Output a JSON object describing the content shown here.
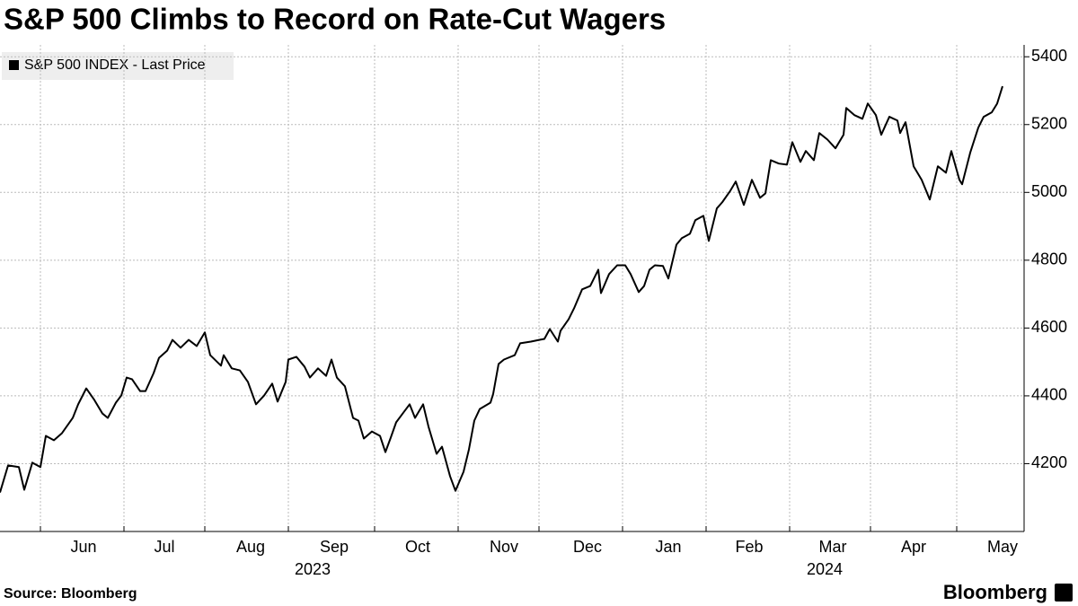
{
  "chart_data": {
    "type": "line",
    "title": "S&P 500 Climbs to Record on Rate-Cut Wagers",
    "source": "Source: Bloomberg",
    "brand": "Bloomberg",
    "legend": "top-left",
    "grid": true,
    "series": [
      {
        "name": "S&P 500 INDEX - Last Price",
        "color": "#000000",
        "x": [
          0,
          3,
          7,
          9,
          12,
          15,
          17,
          20,
          23,
          27,
          29,
          32,
          35,
          38,
          40,
          43,
          45,
          47,
          49,
          52,
          54,
          57,
          59,
          62,
          64,
          67,
          70,
          73,
          76,
          78,
          82,
          83,
          86,
          89,
          92,
          95,
          98,
          101,
          103,
          106,
          107,
          110,
          113,
          115,
          118,
          121,
          123,
          125,
          128,
          131,
          133,
          135,
          138,
          141,
          143,
          145,
          147,
          150,
          152,
          154,
          157,
          159,
          162,
          164,
          167,
          169,
          172,
          174,
          176,
          178,
          182,
          183,
          185,
          187,
          191,
          193,
          197,
          200,
          202,
          204,
          207,
          208,
          211,
          213,
          216,
          219,
          222,
          223,
          226,
          229,
          232,
          234,
          237,
          239,
          241,
          243,
          246,
          248,
          251,
          253,
          256,
          258,
          261,
          263,
          266,
          268,
          271,
          273,
          276,
          279,
          282,
          284,
          286,
          289,
          292,
          294,
          297,
          299,
          302,
          304,
          307,
          310,
          313,
          314,
          317,
          320,
          322,
          325,
          327,
          330,
          333,
          334,
          336,
          339,
          342,
          345,
          348,
          351,
          353,
          356,
          357,
          360,
          363,
          365,
          368,
          370,
          372
        ],
        "values": [
          4115,
          4195,
          4190,
          4123,
          4203,
          4190,
          4282,
          4269,
          4290,
          4335,
          4375,
          4422,
          4388,
          4348,
          4335,
          4380,
          4401,
          4454,
          4449,
          4414,
          4414,
          4467,
          4512,
          4533,
          4565,
          4542,
          4565,
          4547,
          4587,
          4520,
          4489,
          4520,
          4481,
          4475,
          4441,
          4375,
          4401,
          4436,
          4383,
          4441,
          4507,
          4515,
          4486,
          4454,
          4481,
          4459,
          4507,
          4454,
          4428,
          4335,
          4327,
          4274,
          4295,
          4282,
          4234,
          4277,
          4322,
          4354,
          4375,
          4335,
          4375,
          4309,
          4229,
          4250,
          4163,
          4120,
          4176,
          4242,
          4327,
          4361,
          4380,
          4406,
          4494,
          4507,
          4520,
          4555,
          4560,
          4565,
          4568,
          4597,
          4560,
          4592,
          4626,
          4658,
          4714,
          4724,
          4772,
          4703,
          4759,
          4785,
          4785,
          4759,
          4706,
          4724,
          4772,
          4785,
          4783,
          4746,
          4846,
          4865,
          4878,
          4918,
          4931,
          4857,
          4953,
          4971,
          5005,
          5032,
          4963,
          5037,
          4984,
          4997,
          5095,
          5085,
          5082,
          5148,
          5090,
          5122,
          5095,
          5175,
          5156,
          5130,
          5170,
          5249,
          5228,
          5217,
          5262,
          5228,
          5170,
          5223,
          5212,
          5175,
          5207,
          5077,
          5037,
          4979,
          5077,
          5058,
          5122,
          5037,
          5024,
          5117,
          5191,
          5223,
          5236,
          5262,
          5313
        ]
      }
    ],
    "xlim": [
      0,
      380
    ],
    "xgrid": [
      15,
      46,
      76,
      107,
      139,
      170,
      200,
      231,
      262,
      293,
      323,
      355
    ],
    "xticks": [
      {
        "value": 31,
        "label": "Jun"
      },
      {
        "value": 61,
        "label": "Jul"
      },
      {
        "value": 93,
        "label": "Aug"
      },
      {
        "value": 124,
        "label": "Sep"
      },
      {
        "value": 155,
        "label": "Oct"
      },
      {
        "value": 187,
        "label": "Nov"
      },
      {
        "value": 218,
        "label": "Dec"
      },
      {
        "value": 248,
        "label": "Jan"
      },
      {
        "value": 278,
        "label": "Feb"
      },
      {
        "value": 309,
        "label": "Mar"
      },
      {
        "value": 339,
        "label": "Apr"
      },
      {
        "value": 372,
        "label": "May"
      }
    ],
    "year_labels": [
      {
        "value": 116,
        "label": "2023"
      },
      {
        "value": 306,
        "label": "2024"
      }
    ],
    "ylim": [
      4000,
      5435
    ],
    "yticks": [
      4200,
      4400,
      4600,
      4800,
      5000,
      5200,
      5400
    ]
  }
}
